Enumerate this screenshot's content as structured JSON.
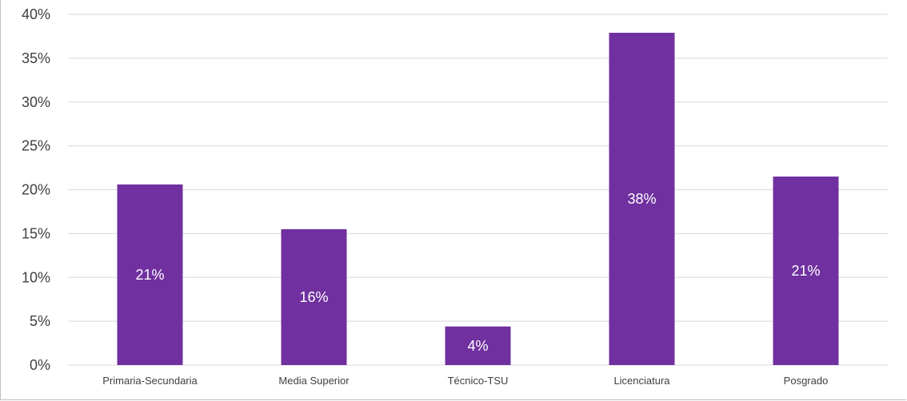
{
  "chart_data": {
    "type": "bar",
    "categories": [
      "Primaria-Secundaria",
      "Media Superior",
      "Técnico-TSU",
      "Licenciatura",
      "Posgrado"
    ],
    "values": [
      20.6,
      15.5,
      4.4,
      37.9,
      21.5
    ],
    "data_labels": [
      "21%",
      "16%",
      "4%",
      "38%",
      "21%"
    ],
    "y_ticks": [
      "0%",
      "5%",
      "10%",
      "15%",
      "20%",
      "25%",
      "30%",
      "35%",
      "40%"
    ],
    "ylim": [
      0,
      40
    ],
    "grid": true,
    "legend": "none",
    "bar_color": "#7030a0"
  }
}
